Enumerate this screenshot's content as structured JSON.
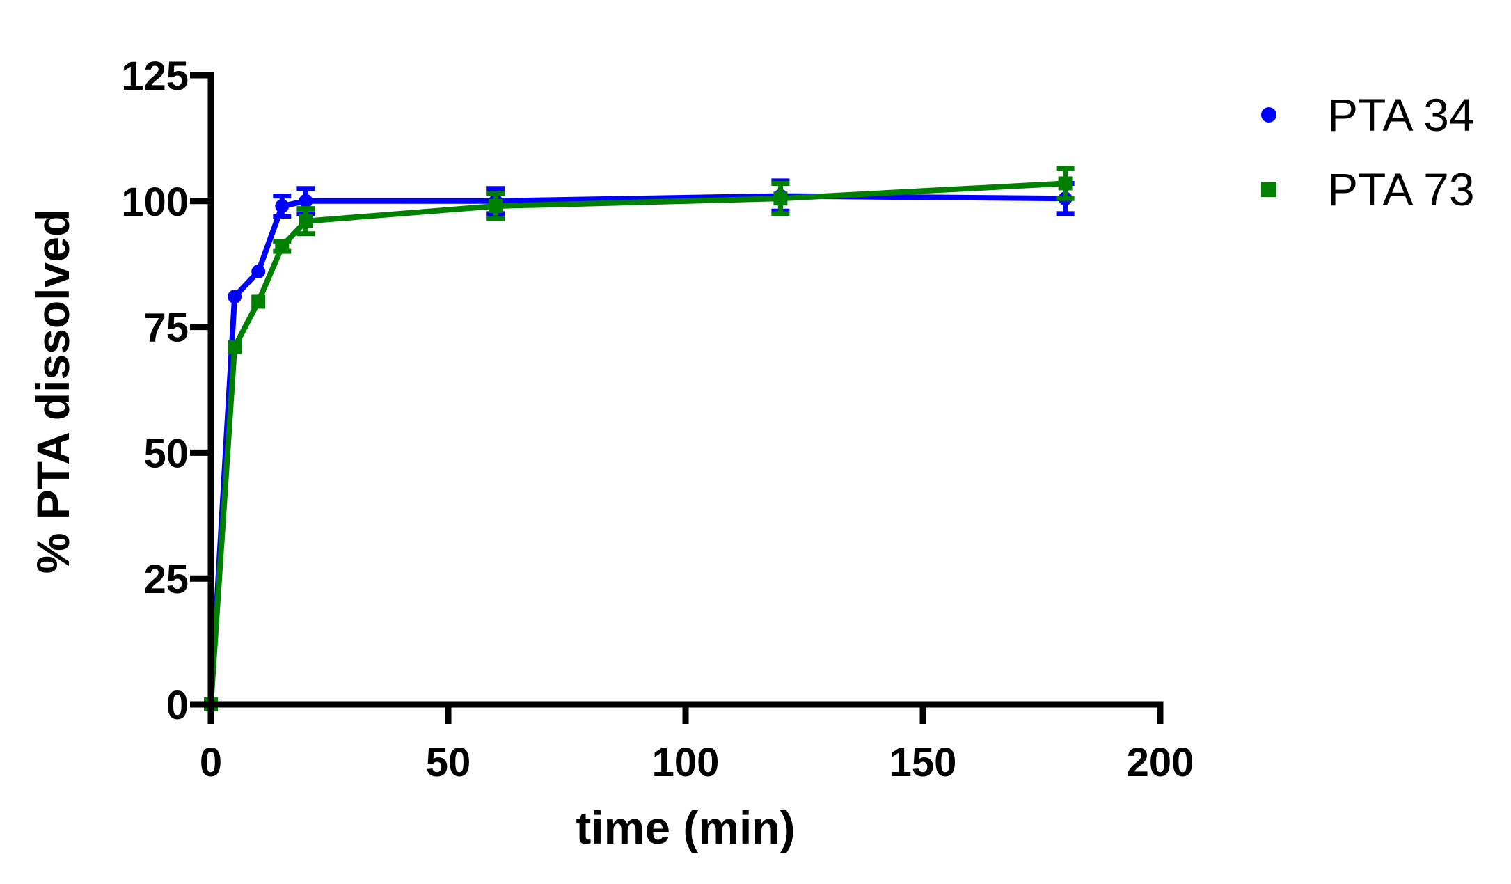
{
  "chart_data": {
    "type": "line",
    "xlabel": "time (min)",
    "ylabel": "% PTA dissolved",
    "xlim": [
      0,
      200
    ],
    "ylim": [
      0,
      125
    ],
    "xticks": [
      0,
      50,
      100,
      150,
      200
    ],
    "yticks": [
      0,
      25,
      50,
      75,
      100,
      125
    ],
    "xtick_labels": [
      "0",
      "50",
      "100",
      "150",
      "200"
    ],
    "ytick_labels": [
      "0",
      "25",
      "50",
      "75",
      "100",
      "125"
    ],
    "grid": false,
    "legend_position": "top-right",
    "series": [
      {
        "name": "PTA 34",
        "color": "#0000ff",
        "marker": "circle",
        "x": [
          0,
          5,
          10,
          15,
          20,
          60,
          120,
          180
        ],
        "y": [
          0,
          81,
          86,
          99,
          100,
          100,
          101,
          100.5
        ],
        "err": [
          0,
          0,
          0,
          2,
          2.5,
          2.5,
          3,
          3
        ]
      },
      {
        "name": "PTA 73",
        "color": "#008000",
        "marker": "square",
        "x": [
          0,
          5,
          10,
          15,
          20,
          60,
          120,
          180
        ],
        "y": [
          0,
          71,
          80,
          91,
          96,
          99,
          100.5,
          103.5
        ],
        "err": [
          0,
          0,
          0,
          1,
          2.5,
          2.5,
          3,
          3
        ]
      }
    ]
  }
}
